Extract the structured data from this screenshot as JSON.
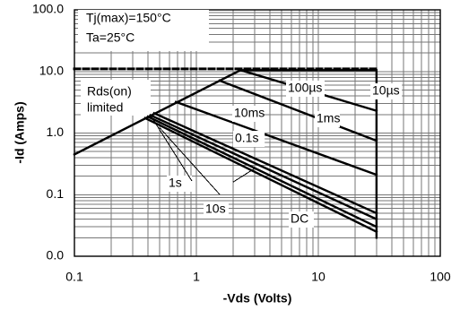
{
  "chart_data": {
    "type": "line",
    "xlabel": "-Vds (Volts)",
    "ylabel": "-Id (Amps)",
    "xscale": "log",
    "yscale": "log",
    "xlim": [
      0.1,
      100
    ],
    "ylim": [
      0.01,
      100
    ],
    "grid": true,
    "x_ticks": [
      {
        "value": 0.1,
        "label": "0.1"
      },
      {
        "value": 1,
        "label": "1"
      },
      {
        "value": 10,
        "label": "10"
      },
      {
        "value": 100,
        "label": "100"
      }
    ],
    "y_ticks": [
      {
        "value": 0.01,
        "label": "0.0"
      },
      {
        "value": 0.1,
        "label": "0.1"
      },
      {
        "value": 1,
        "label": "1.0"
      },
      {
        "value": 10,
        "label": "10.0"
      },
      {
        "value": 100,
        "label": "100.0"
      }
    ],
    "annotations": [
      "Tj(max)=150°C",
      "Ta=25°C",
      "Rds(on)",
      "limited"
    ],
    "dashed_limit": {
      "x": [
        0.1,
        30
      ],
      "y": [
        11,
        11
      ]
    },
    "rds_on_limit": {
      "x": [
        0.1,
        2.3
      ],
      "y": [
        0.45,
        10.5
      ]
    },
    "curves": [
      {
        "label": "10µs",
        "x": [
          2.3,
          30,
          30
        ],
        "y": [
          10.5,
          10.5,
          0.02
        ]
      },
      {
        "label": "100µs",
        "x": [
          2.3,
          30
        ],
        "y": [
          10.5,
          2.3
        ]
      },
      {
        "label": "1ms",
        "x": [
          1.55,
          30
        ],
        "y": [
          7.1,
          0.75
        ]
      },
      {
        "label": "10ms",
        "x": [
          0.68,
          30
        ],
        "y": [
          3.2,
          0.21
        ]
      },
      {
        "label": "0.1s",
        "x": [
          0.45,
          30
        ],
        "y": [
          2.1,
          0.05
        ]
      },
      {
        "label": "1s",
        "x": [
          0.42,
          30
        ],
        "y": [
          1.95,
          0.04
        ]
      },
      {
        "label": "10s",
        "x": [
          0.4,
          30
        ],
        "y": [
          1.85,
          0.03
        ]
      },
      {
        "label": "DC",
        "x": [
          0.38,
          30
        ],
        "y": [
          1.75,
          0.025
        ]
      }
    ]
  },
  "colors": {
    "background": "#ffffff",
    "grid": "#777777",
    "lines": "#000000",
    "text": "#000000"
  }
}
